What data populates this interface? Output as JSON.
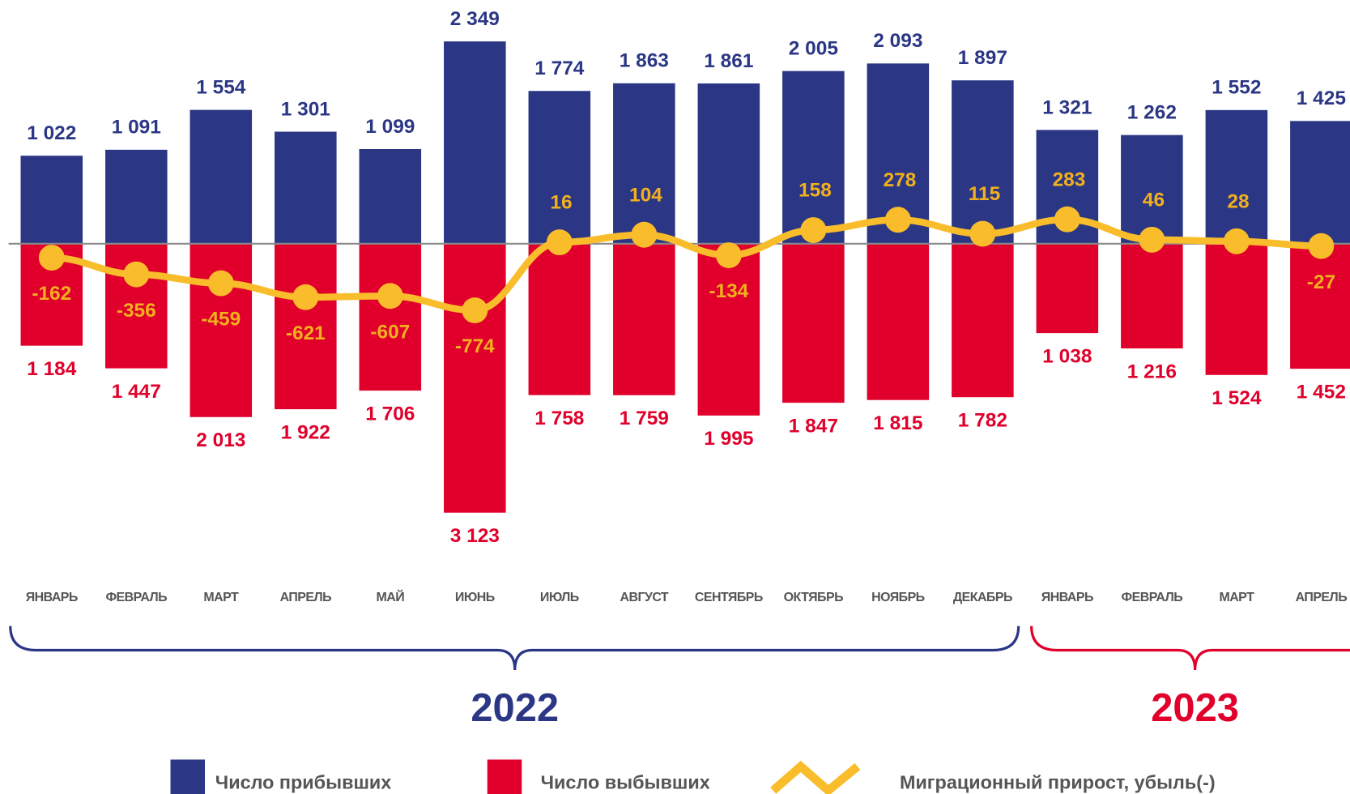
{
  "chart_data": {
    "type": "bar-line",
    "categories": [
      "ЯНВАРЬ",
      "ФЕВРАЛЬ",
      "МАРТ",
      "АПРЕЛЬ",
      "МАЙ",
      "ИЮНЬ",
      "ИЮЛЬ",
      "АВГУСТ",
      "СЕНТЯБРЬ",
      "ОКТЯБРЬ",
      "НОЯБРЬ",
      "ДЕКАБРЬ",
      "ЯНВАРЬ",
      "ФЕВРАЛЬ",
      "МАРТ",
      "АПРЕЛЬ"
    ],
    "series": [
      {
        "name": "Число прибывших",
        "color": "#2b3784",
        "values": [
          1022,
          1091,
          1554,
          1301,
          1099,
          2349,
          1774,
          1863,
          1861,
          2005,
          2093,
          1897,
          1321,
          1262,
          1552,
          1425
        ],
        "value_labels": [
          "1 022",
          "1 091",
          "1 554",
          "1 301",
          "1 099",
          "2 349",
          "1 774",
          "1 863",
          "1 861",
          "2 005",
          "2 093",
          "1 897",
          "1 321",
          "1 262",
          "1 552",
          "1 425"
        ]
      },
      {
        "name": "Число выбывших",
        "color": "#e0002b",
        "values": [
          -1184,
          -1447,
          -2013,
          -1922,
          -1706,
          -3123,
          -1758,
          -1759,
          -1995,
          -1847,
          -1815,
          -1782,
          -1038,
          -1216,
          -1524,
          -1452
        ],
        "value_labels": [
          "1 184",
          "1 447",
          "2 013",
          "1 922",
          "1 706",
          "3 123",
          "1 758",
          "1 759",
          "1 995",
          "1 847",
          "1 815",
          "1 782",
          "1 038",
          "1 216",
          "1 524",
          "1 452"
        ]
      },
      {
        "name": "Миграционный прирост, убыль(-)",
        "color": "#f9bd2b",
        "label_color": "#f2b01e",
        "values": [
          -162,
          -356,
          -459,
          -621,
          -607,
          -774,
          16,
          104,
          -134,
          158,
          278,
          115,
          283,
          46,
          28,
          -27
        ]
      }
    ],
    "ylim": [
      -3200,
      2500
    ],
    "year_groups": [
      {
        "label": "2022",
        "color": "#2b3784"
      },
      {
        "label": "2023",
        "color": "#e0002b"
      }
    ]
  }
}
